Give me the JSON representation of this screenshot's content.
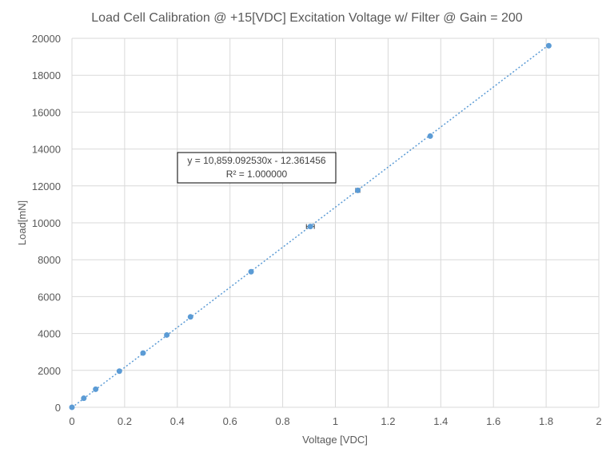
{
  "chart_data": {
    "type": "scatter",
    "title": "Load Cell Calibration @ +15[VDC] Excitation Voltage w/ Filter @ Gain = 200",
    "xlabel": "Voltage [VDC]",
    "ylabel": "Load[mN]",
    "xlim": [
      0,
      2
    ],
    "ylim": [
      0,
      20000
    ],
    "xticks": [
      "0",
      "0.2",
      "0.4",
      "0.6",
      "0.8",
      "1",
      "1.2",
      "1.4",
      "1.6",
      "1.8",
      "2"
    ],
    "yticks": [
      "0",
      "2000",
      "4000",
      "6000",
      "8000",
      "10000",
      "12000",
      "14000",
      "16000",
      "18000",
      "20000"
    ],
    "grid": true,
    "legend": "none",
    "marker_color": "#5b9bd5",
    "series": [
      {
        "x": [
          0.0,
          0.045,
          0.09,
          0.18,
          0.27,
          0.36,
          0.45,
          0.68,
          0.905,
          1.085,
          1.36,
          1.81
        ],
        "y": [
          0,
          490,
          980,
          1960,
          2940,
          3920,
          4900,
          7350,
          9800,
          11760,
          14700,
          19600
        ]
      }
    ],
    "error_bars_x": [
      {
        "x": 0.905,
        "y": 9800,
        "xerr": 0.015
      },
      {
        "x": 1.085,
        "y": 11760,
        "xerr": 0.008
      }
    ],
    "trendline": {
      "type": "linear",
      "slope": 10859.09253,
      "intercept": -12.361456,
      "style": "dotted",
      "equation_text": "y = 10,859.092530x  - 12.361456",
      "r2_text": "R² = 1.000000"
    }
  }
}
